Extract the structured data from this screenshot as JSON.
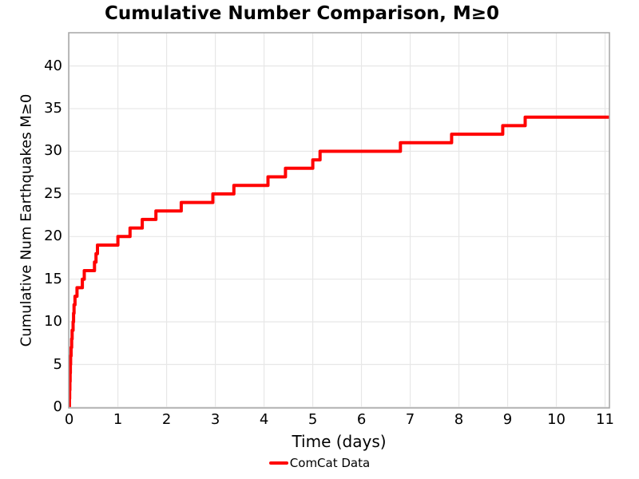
{
  "title": "Cumulative Number Comparison, M≥0",
  "x_axis": {
    "label": "Time (days)",
    "ticks": [
      0,
      1,
      2,
      3,
      4,
      5,
      6,
      7,
      8,
      9,
      10,
      11
    ]
  },
  "y_axis": {
    "label": "Cumulative Num Earthquakes M≥0",
    "ticks": [
      0,
      5,
      10,
      15,
      20,
      25,
      30,
      35,
      40
    ]
  },
  "legend": {
    "items": [
      {
        "label": "ComCat Data",
        "color": "#ff0000"
      }
    ]
  },
  "colors": {
    "line": "#ff0000",
    "grid": "#e7e7e7",
    "spine": "#a6a6a6",
    "text": "#000000",
    "background": "#ffffff"
  },
  "chart_data": {
    "type": "line",
    "step": "post",
    "title": "Cumulative Number Comparison, M≥0",
    "xlabel": "Time (days)",
    "ylabel": "Cumulative Num Earthquakes M≥0",
    "xlim": [
      -0.01,
      11.09
    ],
    "ylim": [
      -0.1,
      43.9
    ],
    "grid": true,
    "legend_position": "bottom-center",
    "series": [
      {
        "name": "ComCat Data",
        "color": "#ff0000",
        "line_width": 4,
        "x": [
          0.005,
          0.01,
          0.015,
          0.02,
          0.025,
          0.03,
          0.04,
          0.05,
          0.06,
          0.08,
          0.09,
          0.1,
          0.12,
          0.16,
          0.27,
          0.31,
          0.52,
          0.55,
          0.58,
          1.0,
          1.25,
          1.5,
          1.78,
          2.3,
          2.95,
          3.38,
          4.08,
          4.44,
          5.0,
          5.15,
          6.8,
          7.85,
          8.9,
          9.36
        ],
        "y": [
          1,
          2,
          3,
          4,
          5,
          6,
          7,
          8,
          9,
          10,
          11,
          12,
          13,
          14,
          15,
          16,
          17,
          18,
          19,
          20,
          21,
          22,
          23,
          24,
          25,
          26,
          27,
          28,
          29,
          30,
          31,
          32,
          33,
          34
        ],
        "extend_to_x": 11.09
      }
    ]
  }
}
